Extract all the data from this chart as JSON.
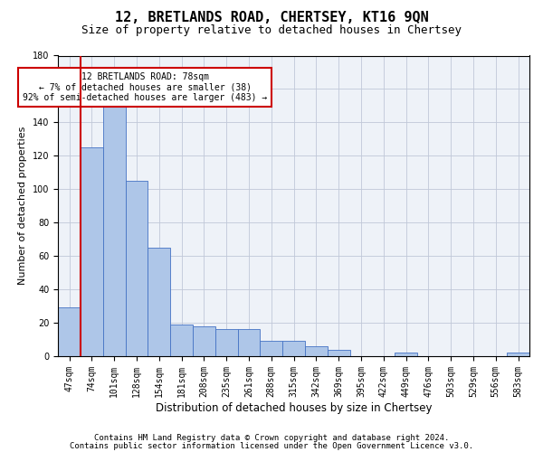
{
  "title": "12, BRETLANDS ROAD, CHERTSEY, KT16 9QN",
  "subtitle": "Size of property relative to detached houses in Chertsey",
  "xlabel": "Distribution of detached houses by size in Chertsey",
  "ylabel": "Number of detached properties",
  "footer1": "Contains HM Land Registry data © Crown copyright and database right 2024.",
  "footer2": "Contains public sector information licensed under the Open Government Licence v3.0.",
  "annotation_title": "12 BRETLANDS ROAD: 78sqm",
  "annotation_line2": "← 7% of detached houses are smaller (38)",
  "annotation_line3": "92% of semi-detached houses are larger (483) →",
  "property_size": 78,
  "bar_values": [
    29,
    125,
    150,
    105,
    65,
    19,
    18,
    16,
    16,
    9,
    9,
    6,
    4,
    0,
    0,
    2,
    0,
    0,
    0,
    0,
    2
  ],
  "bin_labels": [
    "47sqm",
    "74sqm",
    "101sqm",
    "128sqm",
    "154sqm",
    "181sqm",
    "208sqm",
    "235sqm",
    "261sqm",
    "288sqm",
    "315sqm",
    "342sqm",
    "369sqm",
    "395sqm",
    "422sqm",
    "449sqm",
    "476sqm",
    "503sqm",
    "529sqm",
    "556sqm",
    "583sqm"
  ],
  "bar_color": "#aec6e8",
  "bar_edge_color": "#4472c4",
  "red_line_color": "#cc0000",
  "annotation_box_color": "#cc0000",
  "grid_color": "#c0c8d8",
  "bg_color": "#eef2f8",
  "ylim": [
    0,
    180
  ],
  "yticks": [
    0,
    20,
    40,
    60,
    80,
    100,
    120,
    140,
    160,
    180
  ],
  "title_fontsize": 11,
  "subtitle_fontsize": 9,
  "axis_label_fontsize": 8,
  "tick_fontsize": 7,
  "footer_fontsize": 6.5,
  "annotation_fontsize": 7
}
